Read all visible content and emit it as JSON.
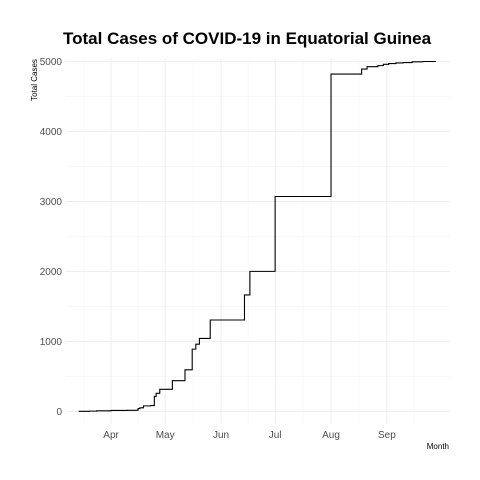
{
  "chart_data": {
    "type": "line",
    "title": "Total Cases of COVID-19 in Equatorial Guinea",
    "xlabel": "Month",
    "ylabel": "Total Cases",
    "x_tick_labels": [
      "Apr",
      "May",
      "Jun",
      "Jul",
      "Aug",
      "Sep"
    ],
    "x_tick_dates": [
      "2020-04-01",
      "2020-05-01",
      "2020-06-01",
      "2020-07-01",
      "2020-08-01",
      "2020-09-01"
    ],
    "x_range": [
      "2020-03-07",
      "2020-10-06"
    ],
    "y_tick_labels": [
      "0",
      "1000",
      "2000",
      "3000",
      "4000",
      "5000"
    ],
    "y_ticks": [
      0,
      1000,
      2000,
      3000,
      4000,
      5000
    ],
    "ylim": [
      -180,
      5050
    ],
    "grid": true,
    "series": [
      {
        "step": true,
        "points": [
          [
            "2020-03-14",
            1
          ],
          [
            "2020-03-20",
            4
          ],
          [
            "2020-03-24",
            9
          ],
          [
            "2020-04-01",
            14
          ],
          [
            "2020-04-10",
            16
          ],
          [
            "2020-04-15",
            18
          ],
          [
            "2020-04-16",
            41
          ],
          [
            "2020-04-17",
            51
          ],
          [
            "2020-04-19",
            79
          ],
          [
            "2020-04-23",
            83
          ],
          [
            "2020-04-25",
            214
          ],
          [
            "2020-04-26",
            258
          ],
          [
            "2020-04-28",
            315
          ],
          [
            "2020-05-05",
            439
          ],
          [
            "2020-05-12",
            594
          ],
          [
            "2020-05-16",
            890
          ],
          [
            "2020-05-18",
            960
          ],
          [
            "2020-05-20",
            1043
          ],
          [
            "2020-05-26",
            1306
          ],
          [
            "2020-06-14",
            1664
          ],
          [
            "2020-06-16",
            1664
          ],
          [
            "2020-06-17",
            2001
          ],
          [
            "2020-06-27",
            2001
          ],
          [
            "2020-07-01",
            3071
          ],
          [
            "2020-07-31",
            3071
          ],
          [
            "2020-08-01",
            4821
          ],
          [
            "2020-08-17",
            4821
          ],
          [
            "2020-08-18",
            4892
          ],
          [
            "2020-08-20",
            4892
          ],
          [
            "2020-08-21",
            4926
          ],
          [
            "2020-08-27",
            4941
          ],
          [
            "2020-08-30",
            4960
          ],
          [
            "2020-09-02",
            4970
          ],
          [
            "2020-09-06",
            4980
          ],
          [
            "2020-09-10",
            4985
          ],
          [
            "2020-09-15",
            4995
          ],
          [
            "2020-09-21",
            5000
          ],
          [
            "2020-09-28",
            5001
          ]
        ]
      }
    ]
  }
}
